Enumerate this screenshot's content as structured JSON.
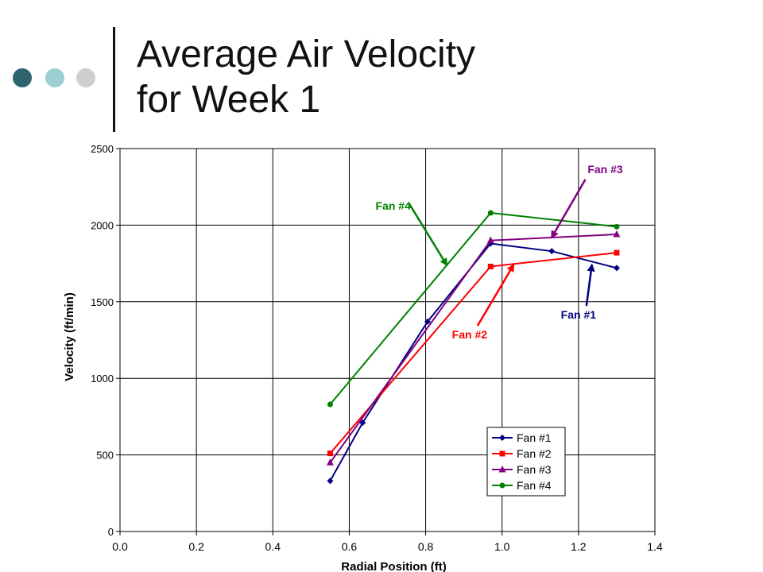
{
  "slide": {
    "title_line1": "Average Air Velocity",
    "title_line2": "for Week 1",
    "bullet_colors": [
      "#2e6470",
      "#9ccfd3",
      "#cfcfcf"
    ]
  },
  "chart_data": {
    "type": "line",
    "title": "",
    "xlabel": "Radial Position (ft)",
    "ylabel": "Velocity (ft/min)",
    "xlim": [
      0.0,
      1.4
    ],
    "ylim": [
      0,
      2500
    ],
    "xticks": [
      0.0,
      0.2,
      0.4,
      0.6,
      0.8,
      1.0,
      1.2,
      1.4
    ],
    "xtick_labels": [
      "0.0",
      "0.2",
      "0.4",
      "0.6",
      "0.8",
      "1.0",
      "1.2",
      "1.4"
    ],
    "yticks": [
      0,
      500,
      1000,
      1500,
      2000,
      2500
    ],
    "ytick_labels": [
      "0",
      "500",
      "1000",
      "1500",
      "2000",
      "2500"
    ],
    "grid": true,
    "legend_position": "bottom-right",
    "series": [
      {
        "name": "Fan #1",
        "color": "#000080",
        "marker": "diamond",
        "x": [
          0.55,
          0.635,
          0.805,
          0.97,
          1.13,
          1.3
        ],
        "y": [
          330,
          710,
          1370,
          1880,
          1830,
          1720
        ]
      },
      {
        "name": "Fan #2",
        "color": "#ff0000",
        "marker": "square",
        "x": [
          0.55,
          0.97,
          1.3
        ],
        "y": [
          510,
          1730,
          1820
        ]
      },
      {
        "name": "Fan #3",
        "color": "#800080",
        "marker": "triangle",
        "x": [
          0.55,
          0.97,
          1.3
        ],
        "y": [
          450,
          1900,
          1940
        ]
      },
      {
        "name": "Fan #4",
        "color": "#008000",
        "marker": "circle",
        "x": [
          0.55,
          0.97,
          1.3
        ],
        "y": [
          830,
          2080,
          1990
        ]
      }
    ],
    "annotations": [
      {
        "text": "Fan #1",
        "color": "#000080",
        "text_at": [
          1.2,
          1390
        ],
        "arrow_to": [
          1.235,
          1740
        ]
      },
      {
        "text": "Fan #2",
        "color": "#ff0000",
        "text_at": [
          0.915,
          1260
        ],
        "arrow_to": [
          1.03,
          1740
        ]
      },
      {
        "text": "Fan #3",
        "color": "#800080",
        "text_at": [
          1.27,
          2340
        ],
        "arrow_to": [
          1.13,
          1920
        ]
      },
      {
        "text": "Fan #4",
        "color": "#008000",
        "text_at": [
          0.715,
          2100
        ],
        "arrow_to": [
          0.855,
          1740
        ]
      }
    ]
  }
}
